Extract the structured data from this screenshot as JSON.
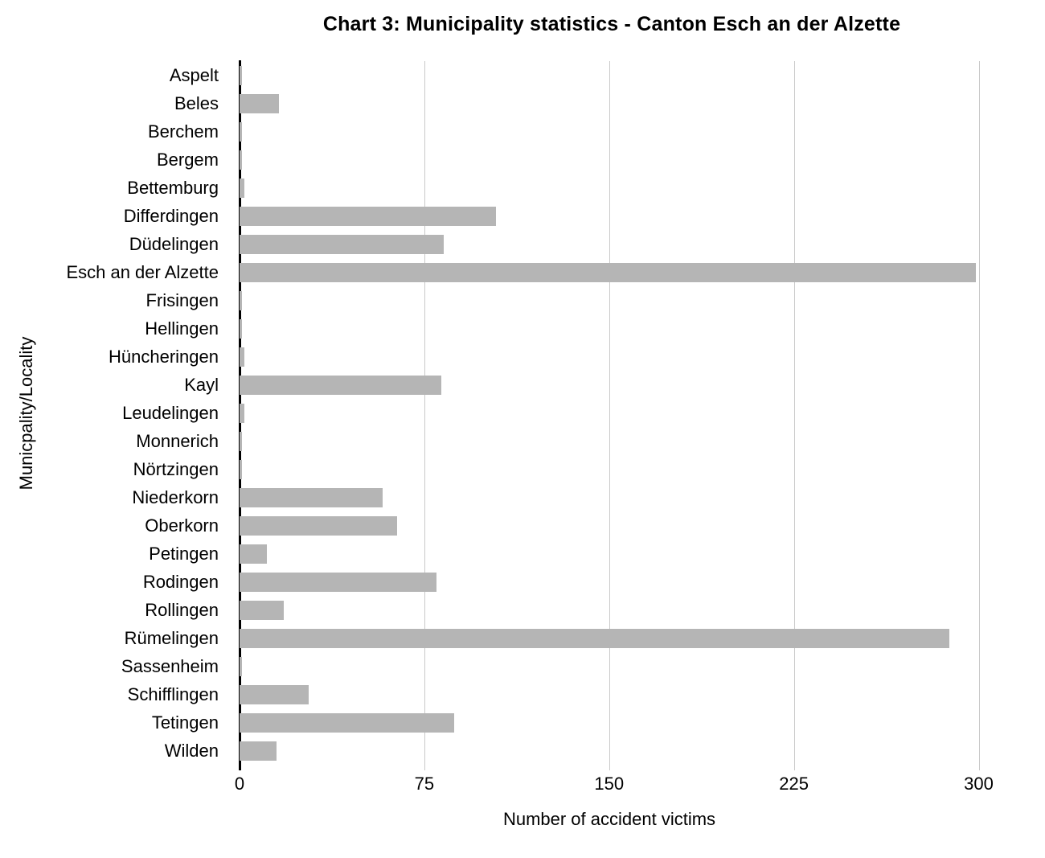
{
  "title": "Chart 3: Municipality statistics - Canton Esch an der Alzette",
  "chart_data": {
    "type": "bar",
    "orientation": "horizontal",
    "title": "Chart 3: Municipality statistics - Canton Esch an der Alzette",
    "xlabel": "Number of accident victims",
    "ylabel": "Municpality/Locality",
    "xlim": [
      0,
      300
    ],
    "xticks": [
      0,
      75,
      150,
      225,
      300
    ],
    "grid": "vertical-gridlines-at-xticks",
    "legend_position": "none",
    "bar_color": "#b5b5b5",
    "gridline_color": "#c9c9c9",
    "axis_color": "#000000",
    "categories": [
      "Aspelt",
      "Beles",
      "Berchem",
      "Bergem",
      "Bettemburg",
      "Differdingen",
      "Düdelingen",
      "Esch an der Alzette",
      "Frisingen",
      "Hellingen",
      "Hüncheringen",
      "Kayl",
      "Leudelingen",
      "Monnerich",
      "Nörtzingen",
      "Niederkorn",
      "Oberkorn",
      "Petingen",
      "Rodingen",
      "Rollingen",
      "Rümelingen",
      "Sassenheim",
      "Schifflingen",
      "Tetingen",
      "Wilden"
    ],
    "values": [
      1,
      16,
      1,
      1,
      2,
      104,
      83,
      299,
      1,
      1,
      2,
      82,
      2,
      1,
      1,
      58,
      64,
      11,
      80,
      18,
      288,
      1,
      28,
      87,
      15
    ]
  }
}
